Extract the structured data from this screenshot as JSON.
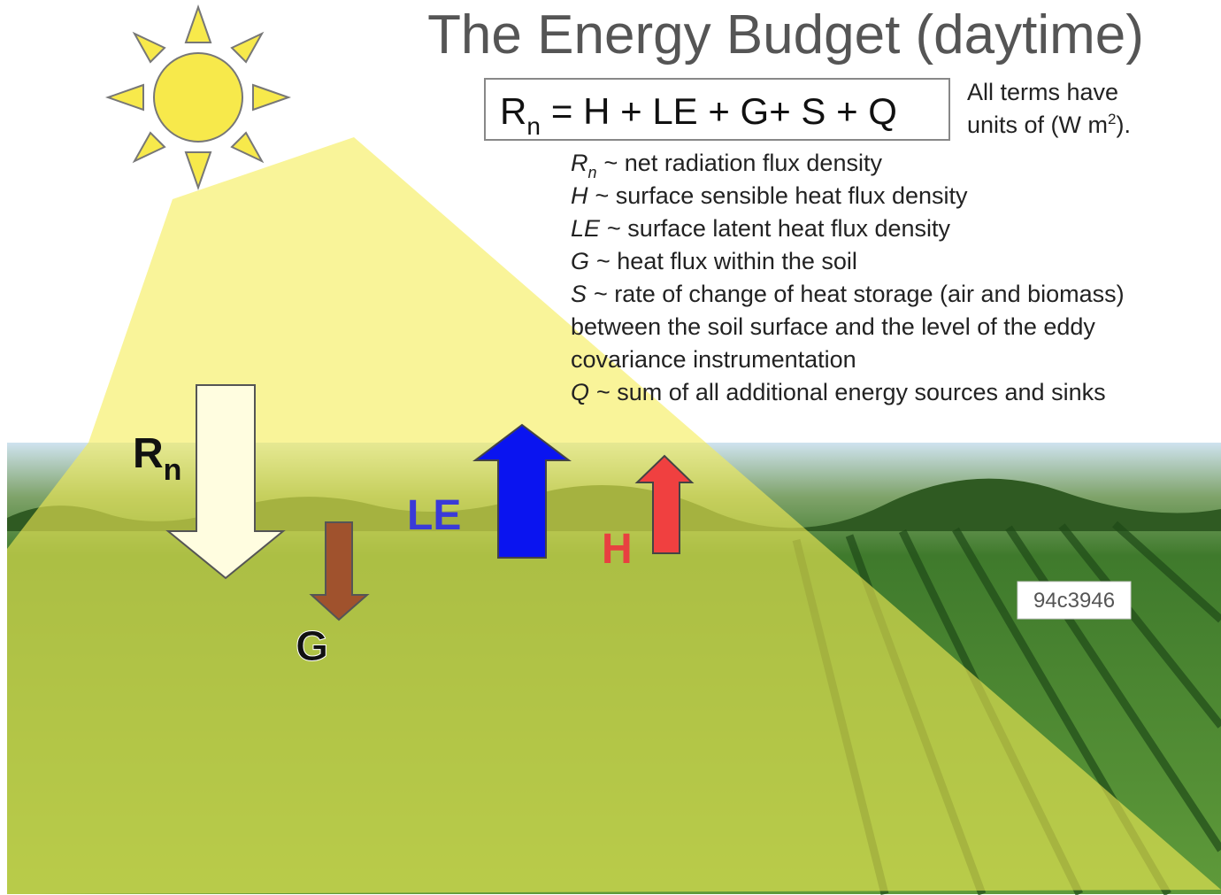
{
  "title": "The Energy Budget (daytime)",
  "equation": {
    "lhs": "R",
    "lhs_sub": "n",
    "rhs": "= H + LE + G+ S + Q"
  },
  "units_note": {
    "line1": "All terms have",
    "line2": "units of (W m",
    "superscript": "2",
    "end": ")."
  },
  "definitions": [
    {
      "symbol": "R",
      "sub": "n",
      "lines": [
        "~ net radiation flux density"
      ]
    },
    {
      "symbol": "H",
      "lines": [
        "~ surface sensible heat flux density"
      ]
    },
    {
      "symbol": "LE",
      "lines": [
        "~ surface latent heat flux density"
      ]
    },
    {
      "symbol": "G",
      "lines": [
        "~ heat flux within the soil"
      ]
    },
    {
      "symbol": "S",
      "lines": [
        "~ rate of change of heat storage (air and biomass)",
        "between the soil surface and the level of the eddy",
        "covariance instrumentation"
      ]
    },
    {
      "symbol": "Q",
      "lines": [
        "~ sum of all additional energy sources and sinks"
      ]
    }
  ],
  "arrow_labels": {
    "rn": "R",
    "rn_sub": "n",
    "le": "LE",
    "h": "H",
    "g": "G"
  },
  "badge": "94c3946"
}
